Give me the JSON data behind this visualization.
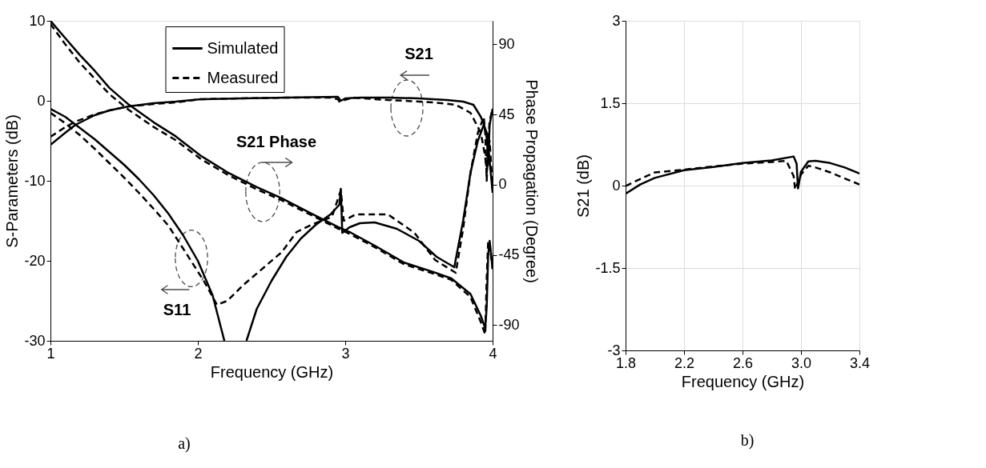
{
  "chart_data": [
    {
      "type": "line",
      "xlabel": "Frequency (GHz)",
      "ylabel": "S-Parameters (dB)",
      "y2label": "Phase Propagation (Degree)",
      "xlim": [
        1,
        4
      ],
      "xticks": [
        1,
        2,
        3,
        4
      ],
      "ylim": [
        -30,
        10
      ],
      "yticks": [
        -30,
        -20,
        -10,
        0,
        10
      ],
      "y2lim": [
        -100,
        105
      ],
      "y2ticks": [
        -90,
        -45,
        0,
        45,
        90
      ],
      "legend": "top",
      "annotations": [
        "S21",
        "S21 Phase",
        "S11",
        "a)"
      ],
      "series": [
        {
          "name": "Simulated",
          "color": "#000000",
          "line_style": "solid",
          "x": [
            1.0,
            1.1,
            1.2,
            1.3,
            1.4,
            1.5,
            1.6,
            1.7,
            1.8,
            1.9,
            2.0,
            2.1,
            2.18,
            2.26,
            2.33,
            2.4,
            2.5,
            2.6,
            2.7,
            2.8,
            2.9,
            2.96,
            2.97,
            2.98,
            3.03,
            3.1,
            3.2,
            3.35,
            3.5,
            3.62,
            3.74,
            3.8,
            3.85,
            3.9,
            3.94,
            3.96,
            3.97,
            3.98,
            4.0
          ],
          "values": [
            -1,
            -2,
            -3.4,
            -4.8,
            -6.4,
            -8,
            -9.8,
            -11.8,
            -14.1,
            -16.8,
            -20,
            -24.3,
            -30,
            null,
            -30,
            -26,
            -22.5,
            -19.5,
            -17.2,
            -15.5,
            -14.2,
            -13,
            -11,
            -16.5,
            -15.8,
            -15.3,
            -15.2,
            -16,
            -17.5,
            -19.5,
            -20.8,
            -15,
            -9,
            -5,
            -3,
            -4,
            -8,
            -3,
            -1
          ]
        },
        {
          "name": "Measured",
          "color": "#000000",
          "line_style": "dashed",
          "x": [
            1.0,
            1.1,
            1.2,
            1.3,
            1.4,
            1.5,
            1.6,
            1.7,
            1.8,
            1.95,
            2.04,
            2.13,
            2.2,
            2.31,
            2.45,
            2.57,
            2.67,
            2.77,
            2.91,
            2.97,
            2.99,
            3.07,
            3.29,
            3.47,
            3.61,
            3.75,
            3.8,
            3.85,
            3.9,
            3.94,
            3.95,
            3.96,
            3.97,
            3.98,
            4.0
          ],
          "values": [
            -1.5,
            -2.8,
            -4.3,
            -6,
            -7.8,
            -9.6,
            -11.5,
            -13.5,
            -15.6,
            -19.9,
            -22.5,
            -25.5,
            -25,
            -23,
            -20.8,
            -18.9,
            -16.4,
            -15.5,
            -14.5,
            -11.2,
            -15,
            -14.2,
            -14.2,
            -16.5,
            -19.9,
            -21.5,
            -16,
            -9,
            -4,
            -2,
            -4,
            -10,
            -5,
            -2.5,
            -1
          ]
        },
        {
          "color": "#000000",
          "line_style": "solid",
          "x": [
            1.0,
            1.1,
            1.17,
            1.3,
            1.4,
            1.53,
            1.7,
            1.85,
            2.02,
            2.3,
            2.6,
            2.95,
            2.97,
            3.0,
            3.1,
            3.3,
            3.5,
            3.69,
            3.8,
            3.87,
            3.92,
            3.94,
            3.97,
            3.98,
            3.99,
            4.0
          ],
          "values": [
            -5.5,
            -4,
            -3,
            -1.8,
            -1.2,
            -0.7,
            -0.3,
            -0.1,
            0.2,
            0.3,
            0.4,
            0.5,
            0,
            0.3,
            0.4,
            0.4,
            0.3,
            0.1,
            -0.1,
            -0.5,
            -2,
            -2.9,
            -5.5,
            -7.5,
            -9.5,
            -11.5
          ]
        },
        {
          "color": "#000000",
          "line_style": "dashed",
          "x": [
            1.0,
            1.1,
            1.17,
            1.3,
            1.4,
            1.53,
            1.7,
            1.85,
            2.02,
            2.3,
            2.6,
            2.9,
            2.95,
            2.96,
            3.05,
            3.2,
            3.4,
            3.6,
            3.75,
            3.85,
            3.92,
            3.95,
            3.96,
            3.97,
            3.98,
            4.0
          ],
          "values": [
            -4.5,
            -3.3,
            -2.6,
            -1.7,
            -1.2,
            -0.7,
            -0.4,
            -0.2,
            0.2,
            0.3,
            0.4,
            0.4,
            0.2,
            -0.1,
            0.4,
            0.2,
            0,
            -0.2,
            -0.5,
            -1.5,
            -4,
            -7,
            -9,
            -6,
            -5,
            -11
          ]
        },
        {
          "color": "#000000",
          "line_style": "solid",
          "axis": "y2",
          "x": [
            1.0,
            1.1,
            1.2,
            1.3,
            1.4,
            1.53,
            1.7,
            1.85,
            2.02,
            2.2,
            2.4,
            2.57,
            2.78,
            2.95,
            3.04,
            3.2,
            3.4,
            3.6,
            3.72,
            3.85,
            3.92,
            3.95,
            3.96,
            3.97,
            3.98,
            4.0
          ],
          "values": [
            105,
            94,
            83,
            73,
            62,
            51.4,
            40,
            31,
            18.5,
            8,
            -1.5,
            -8.7,
            -19,
            -27,
            -30.8,
            -39,
            -49.9,
            -56,
            -60,
            -70,
            -84,
            -92,
            -78,
            -45,
            -36,
            -54
          ]
        },
        {
          "color": "#000000",
          "line_style": "dashed",
          "axis": "y2",
          "x": [
            1.0,
            1.1,
            1.2,
            1.3,
            1.4,
            1.53,
            1.7,
            1.85,
            2.02,
            2.2,
            2.4,
            2.57,
            2.78,
            2.95,
            3.04,
            3.2,
            3.4,
            3.6,
            3.72,
            3.85,
            3.92,
            3.95,
            3.96,
            3.97,
            3.98,
            4.0
          ],
          "values": [
            103,
            90,
            78,
            68,
            58,
            48,
            37,
            28.5,
            16.5,
            6.5,
            -3,
            -10,
            -20,
            -28,
            -32,
            -40,
            -51,
            -57,
            -61,
            -72,
            -88,
            -96,
            -60,
            -36,
            -38,
            -54
          ]
        }
      ]
    },
    {
      "type": "line",
      "xlabel": "Frequency (GHz)",
      "ylabel": "S21 (dB)",
      "xlim": [
        1.8,
        3.4
      ],
      "xticks": [
        1.8,
        2.2,
        2.6,
        {
          "value": 3,
          "label": "3.0"
        },
        3.4
      ],
      "ylim": [
        -3,
        3
      ],
      "yticks": [
        -3,
        -1.5,
        0,
        1.5,
        3
      ],
      "grid": true,
      "legend": "bottom",
      "annotations": [
        "b)"
      ],
      "series": [
        {
          "name": "Simulated",
          "color": "#000000",
          "line_style": "solid",
          "x": [
            1.8,
            1.9,
            2.0,
            2.2,
            2.4,
            2.6,
            2.8,
            2.95,
            2.97,
            2.98,
            3.0,
            3.05,
            3.1,
            3.2,
            3.3,
            3.4
          ],
          "values": [
            -0.15,
            0.02,
            0.14,
            0.28,
            0.34,
            0.41,
            0.46,
            0.53,
            0.4,
            -0.05,
            0.25,
            0.44,
            0.45,
            0.41,
            0.33,
            0.22
          ]
        },
        {
          "name": "Measured",
          "color": "#000000",
          "line_style": "dashed",
          "x": [
            1.8,
            1.9,
            2.0,
            2.2,
            2.4,
            2.6,
            2.8,
            2.9,
            2.95,
            2.96,
            3.0,
            3.05,
            3.1,
            3.2,
            3.3,
            3.4
          ],
          "values": [
            -0.01,
            0.12,
            0.24,
            0.29,
            0.35,
            0.4,
            0.43,
            0.45,
            0.17,
            -0.07,
            0.2,
            0.36,
            0.33,
            0.24,
            0.13,
            0.02
          ]
        }
      ]
    }
  ]
}
